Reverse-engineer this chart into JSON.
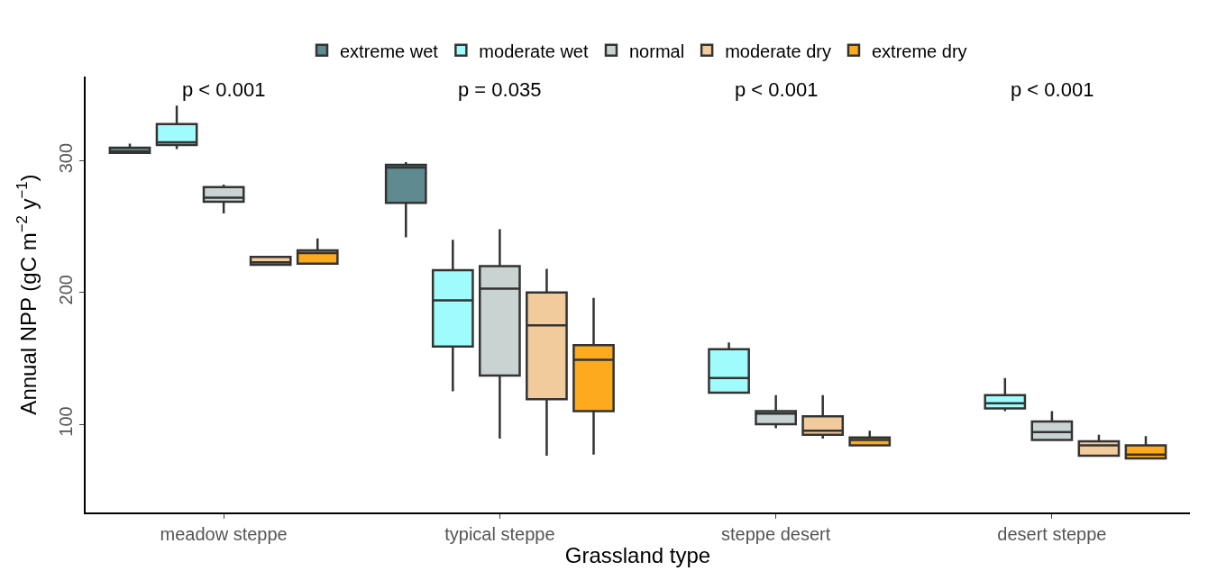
{
  "chart_data": {
    "type": "box",
    "xlabel": "Grassland type",
    "ylabel": "Annual NPP (gC m$^{−2}$ y$^{−1}$)",
    "categories": [
      "meadow steppe",
      "typical steppe",
      "steppe desert",
      "desert steppe"
    ],
    "ylim": [
      33,
      364
    ],
    "yticks": [
      100,
      200,
      300
    ],
    "legend": "top",
    "series": [
      {
        "name": "extreme wet",
        "color": "#5f8a8f",
        "boxes": [
          {
            "low": 306,
            "q1": 306,
            "median": 307,
            "q3": 310,
            "high": 313
          },
          {
            "low": 242,
            "q1": 268,
            "median": 295,
            "q3": 297,
            "high": 299
          },
          null,
          null
        ]
      },
      {
        "name": "moderate wet",
        "color": "#a0fcfc",
        "boxes": [
          {
            "low": 309,
            "q1": 312,
            "median": 314,
            "q3": 328,
            "high": 342
          },
          {
            "low": 125,
            "q1": 159,
            "median": 194,
            "q3": 217,
            "high": 240
          },
          {
            "low": 124,
            "q1": 124,
            "median": 135,
            "q3": 157,
            "high": 162
          },
          {
            "low": 110,
            "q1": 112,
            "median": 116,
            "q3": 122,
            "high": 135
          }
        ]
      },
      {
        "name": "normal",
        "color": "#c9d3d1",
        "boxes": [
          {
            "low": 260,
            "q1": 269,
            "median": 272,
            "q3": 280,
            "high": 282
          },
          {
            "low": 89,
            "q1": 137,
            "median": 203,
            "q3": 220,
            "high": 248
          },
          {
            "low": 97,
            "q1": 100,
            "median": 108,
            "q3": 110,
            "high": 122
          },
          {
            "low": 88,
            "q1": 88,
            "median": 94,
            "q3": 102,
            "high": 110
          }
        ]
      },
      {
        "name": "moderate dry",
        "color": "#f1cb9c",
        "boxes": [
          {
            "low": 221,
            "q1": 221,
            "median": 223,
            "q3": 227,
            "high": 227
          },
          {
            "low": 76,
            "q1": 119,
            "median": 175,
            "q3": 200,
            "high": 218
          },
          {
            "low": 89,
            "q1": 92,
            "median": 95,
            "q3": 106,
            "high": 122
          },
          {
            "low": 76,
            "q1": 76,
            "median": 84,
            "q3": 87,
            "high": 92
          }
        ]
      },
      {
        "name": "extreme dry",
        "color": "#fdaa1f",
        "boxes": [
          {
            "low": 222,
            "q1": 222,
            "median": 230,
            "q3": 232,
            "high": 241
          },
          {
            "low": 77,
            "q1": 110,
            "median": 149,
            "q3": 160,
            "high": 196
          },
          {
            "low": 84,
            "q1": 84,
            "median": 88,
            "q3": 90,
            "high": 95
          },
          {
            "low": 74,
            "q1": 74,
            "median": 77,
            "q3": 84,
            "high": 91
          }
        ]
      }
    ],
    "annotations": [
      "p < 0.001",
      "p = 0.035",
      "p < 0.001",
      "p < 0.001"
    ]
  }
}
